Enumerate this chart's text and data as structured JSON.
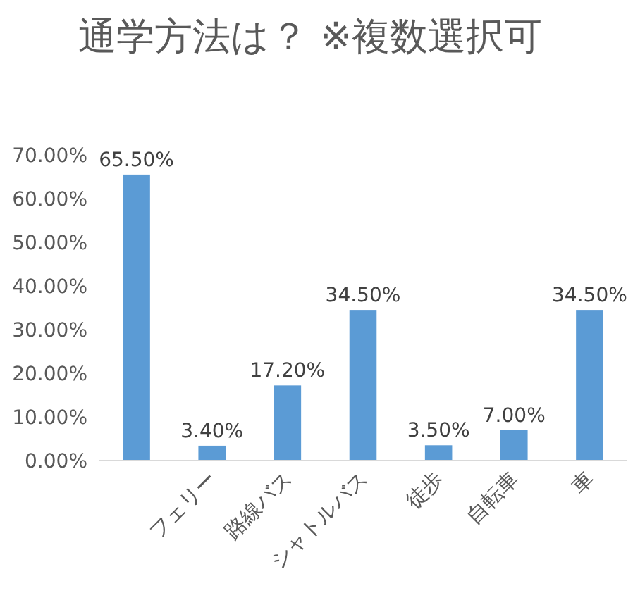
{
  "chart_data": {
    "type": "bar",
    "title": "通学方法は？ ※複数選択可",
    "categories": [
      null,
      "フェリー",
      "路線バス",
      "シャトルバス",
      "徒歩",
      "自転車",
      "車"
    ],
    "values": [
      65.5,
      3.4,
      17.2,
      34.5,
      3.5,
      7.0,
      34.5
    ],
    "value_labels": [
      "65.50%",
      "3.40%",
      "17.20%",
      "34.50%",
      "3.50%",
      "7.00%",
      "34.50%"
    ],
    "color": "#5b9bd5",
    "ylim": [
      0,
      70
    ],
    "yticks": [
      {
        "value": 0,
        "label": "0.00%"
      },
      {
        "value": 10,
        "label": "10.00%"
      },
      {
        "value": 20,
        "label": "20.00%"
      },
      {
        "value": 30,
        "label": "30.00%"
      },
      {
        "value": 40,
        "label": "40.00%"
      },
      {
        "value": 50,
        "label": "50.00%"
      },
      {
        "value": 60,
        "label": "60.00%"
      },
      {
        "value": 70,
        "label": "70.00%"
      }
    ]
  }
}
